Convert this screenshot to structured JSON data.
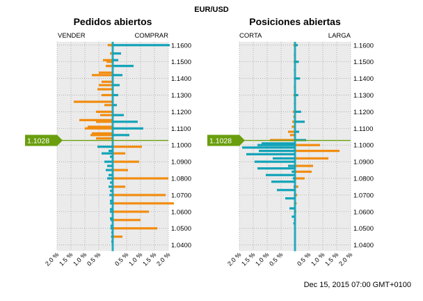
{
  "chart_data": {
    "type": "bar",
    "title": "EUR/USD",
    "timestamp": "Dec 15, 2015 07:00 GMT+0100",
    "current_price": "1.1028",
    "price_marker_value": 1.1028,
    "y_axis": {
      "ylim": [
        1.0365,
        1.162
      ],
      "ticks": [
        "1.1600",
        "1.1500",
        "1.1400",
        "1.1300",
        "1.1200",
        "1.1100",
        "1.1000",
        "1.0900",
        "1.0800",
        "1.0700",
        "1.0600",
        "1.0500",
        "1.0400"
      ]
    },
    "x_axis": {
      "xlim": [
        -2.0,
        2.0
      ],
      "ticks": [
        "2.0 %",
        "1.5 %",
        "1.0 %",
        "0.5 %",
        "0.5 %",
        "1.0 %",
        "1.5 %",
        "2.0 %"
      ],
      "tick_values": [
        -2.0,
        -1.5,
        -1.0,
        -0.5,
        0.5,
        1.0,
        1.5,
        2.0
      ]
    },
    "colors": {
      "teal": "#12a3b8",
      "orange": "#f28c0f",
      "marker": "#6a9e0e",
      "panel": "#ebebeb",
      "grid": "#9a9a9a"
    },
    "panels": [
      {
        "title": "Pedidos abiertos",
        "left_label": "VENDER",
        "right_label": "COMPRAR",
        "rows": [
          [
            1.16,
            0.12,
            2.05,
            1.16,
            0.18
          ],
          [
            1.155,
            0.1,
            0.3,
            1.15,
            0.22
          ],
          [
            1.151,
            0.35,
            0.2,
            1.1475,
            0.25
          ],
          [
            1.1475,
            0.2,
            0.75,
            1.1435,
            0.5
          ],
          [
            1.142,
            0.75,
            0.35,
            1.138,
            0.4
          ],
          [
            1.136,
            0.5,
            0.25,
            1.1335,
            0.55
          ],
          [
            1.13,
            0.4,
            0.2,
            1.126,
            1.4
          ],
          [
            1.124,
            0.3,
            0.15,
            1.12,
            0.6
          ],
          [
            1.118,
            0.45,
            0.4,
            1.115,
            1.2
          ],
          [
            1.114,
            0.6,
            0.9,
            1.111,
            0.9
          ],
          [
            1.11,
            1.0,
            1.1,
            1.107,
            0.75
          ],
          [
            1.106,
            0.8,
            0.6,
            1.104,
            0.6
          ],
          [
            1.099,
            0.55,
            1.05,
            1.0965,
            0.15
          ],
          [
            1.095,
            0.4,
            0.45,
            1.093,
            0.1
          ],
          [
            1.09,
            0.3,
            0.95,
            1.0875,
            0.2
          ],
          [
            1.085,
            0.25,
            0.55,
            1.082,
            0.15
          ],
          [
            1.08,
            0.2,
            2.0,
            1.0775,
            0.1
          ],
          [
            1.075,
            0.15,
            0.45,
            1.0725,
            0.1
          ],
          [
            1.07,
            0.12,
            1.9,
            1.0665,
            0.1
          ],
          [
            1.065,
            0.1,
            2.2,
            1.0615,
            0.1
          ],
          [
            1.06,
            0.1,
            1.3,
            1.056,
            0.1
          ],
          [
            1.055,
            0.08,
            1.0,
            1.0515,
            0.08
          ],
          [
            1.05,
            0.08,
            1.6,
            1.0475,
            0.05
          ],
          [
            1.045,
            0.06,
            0.35,
            1.042,
            0.05
          ]
        ]
      },
      {
        "title": "Posiciones abiertas",
        "left_label": "CORTA",
        "right_label": "LARGA",
        "rows": [
          [
            1.16,
            0.06,
            0.1,
            1.154,
            0.04
          ],
          [
            1.15,
            0.05,
            0.14,
            1.145,
            0.04
          ],
          [
            1.14,
            0.04,
            0.18,
            1.135,
            0.04
          ],
          [
            1.13,
            0.06,
            0.12,
            1.125,
            0.04
          ],
          [
            1.12,
            0.08,
            0.22,
            1.117,
            0.06
          ],
          [
            1.114,
            0.1,
            0.35,
            1.111,
            0.12
          ],
          [
            1.108,
            0.25,
            0.15,
            1.106,
            0.18
          ],
          [
            1.103,
            0.9,
            0.4,
            1.101,
            1.2
          ],
          [
            1.1,
            1.35,
            0.9,
            1.0985,
            1.9
          ],
          [
            1.0965,
            1.3,
            1.6,
            1.0945,
            1.75
          ],
          [
            1.092,
            0.8,
            1.2,
            1.09,
            1.45
          ],
          [
            1.0875,
            0.25,
            0.65,
            1.086,
            1.35
          ],
          [
            1.084,
            0.12,
            0.6,
            1.082,
            1.05
          ],
          [
            1.08,
            0.08,
            0.35,
            1.078,
            0.85
          ],
          [
            1.075,
            0.05,
            0.12,
            1.073,
            0.65
          ],
          [
            1.07,
            0.04,
            0.08,
            1.068,
            0.35
          ],
          [
            1.065,
            0.03,
            0.06,
            1.062,
            0.2
          ],
          [
            1.06,
            0.03,
            0.05,
            1.057,
            0.12
          ],
          [
            1.055,
            0.02,
            0.03,
            1.053,
            0.06
          ]
        ]
      }
    ]
  }
}
